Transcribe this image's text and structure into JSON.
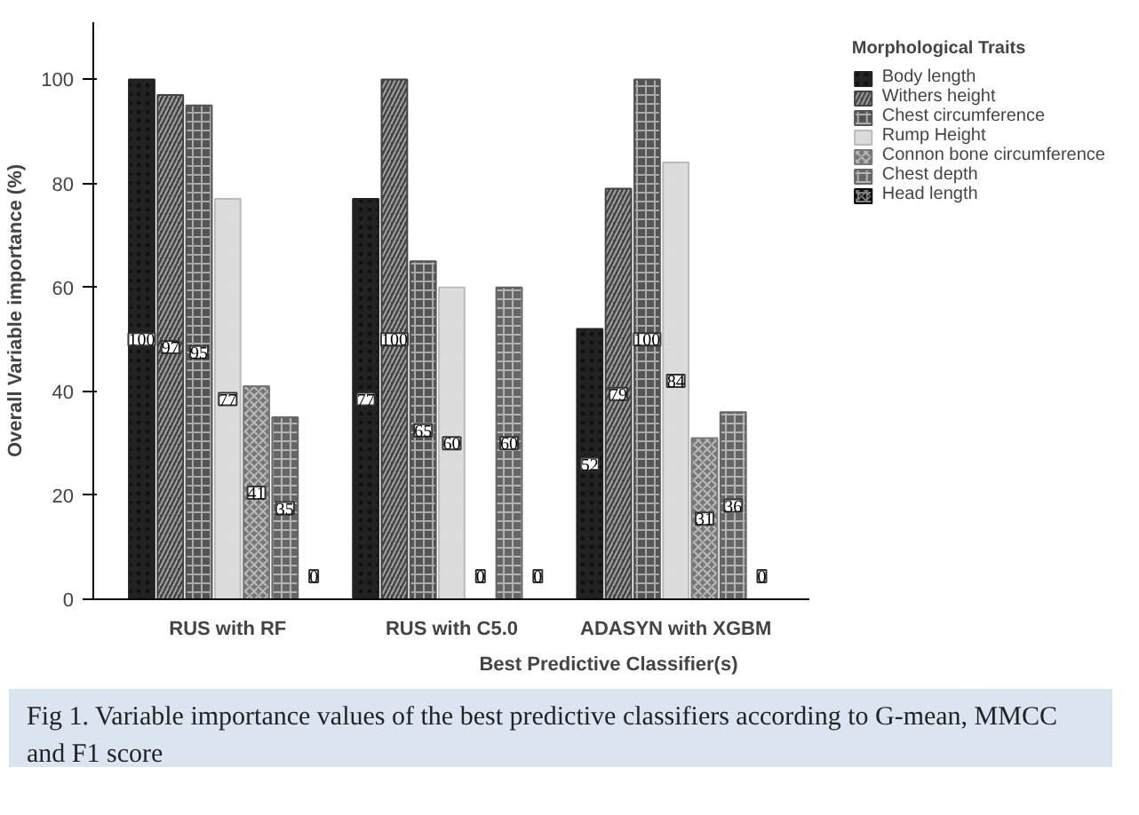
{
  "chart_data": {
    "type": "bar",
    "xlabel": "Best Predictive Classifier(s)",
    "ylabel": "Overall Variable importance (%)",
    "legend_title": "Morphological Traits",
    "categories": [
      "RUS with RF",
      "RUS with C5.0",
      "ADASYN with XGBM"
    ],
    "series": [
      {
        "name": "Body length",
        "color": "#222222",
        "values": [
          100,
          77,
          52
        ]
      },
      {
        "name": "Withers height",
        "color": "#444444",
        "values": [
          97,
          100,
          79
        ]
      },
      {
        "name": "Chest circumference",
        "color": "#555555",
        "values": [
          95,
          65,
          100
        ]
      },
      {
        "name": "Rump Height",
        "color": "#bbbbbb",
        "values": [
          77,
          60,
          84
        ]
      },
      {
        "name": "Connon bone circumference",
        "color": "#777777",
        "values": [
          41,
          0,
          31
        ]
      },
      {
        "name": "Chest depth",
        "color": "#666666",
        "values": [
          35,
          60,
          36
        ]
      },
      {
        "name": "Head length",
        "color": "#000000",
        "values": [
          0,
          0,
          0
        ]
      }
    ],
    "ylim": [
      0,
      111
    ],
    "yticks": [
      0,
      20,
      40,
      60,
      80,
      100
    ],
    "grid": false,
    "legend": "top right",
    "data_labels": true,
    "annotations": [
      "Fig 1. Variable importance values of the best predictive classifiers according to G-mean, MMCC and F1 score"
    ]
  }
}
